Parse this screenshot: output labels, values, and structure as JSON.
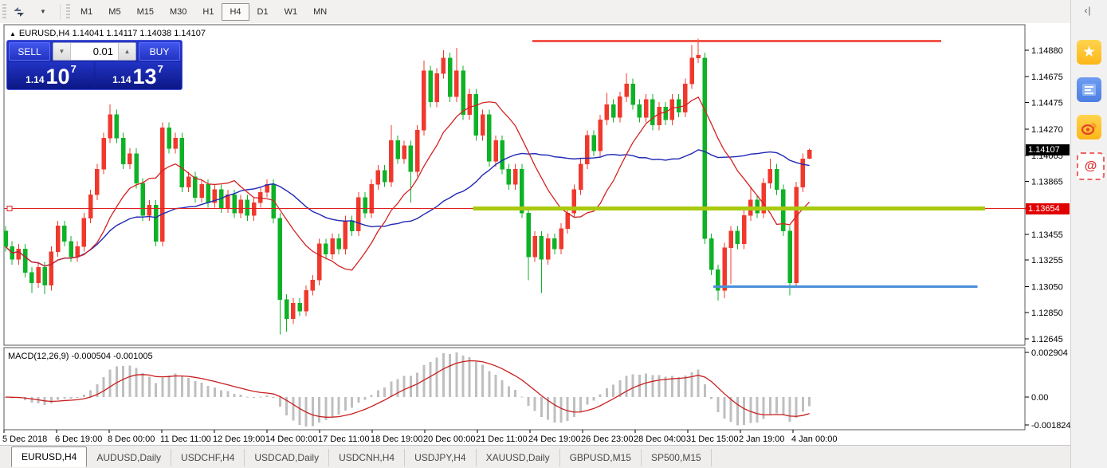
{
  "toolbar": {
    "timeframes": [
      "M1",
      "M5",
      "M15",
      "M30",
      "H1",
      "H4",
      "D1",
      "W1",
      "MN"
    ],
    "active_timeframe": "H4",
    "arrange_icon": "tile-windows-icon"
  },
  "sidebar": {
    "collapse_label": "‹|",
    "icons": [
      "favorites-star-icon",
      "news-feed-icon",
      "weibo-icon",
      "mail-at-icon"
    ],
    "star_glyph": "★",
    "at_glyph": "@"
  },
  "chart": {
    "expand_glyph": "▲",
    "symbol_title": "EURUSD,H4",
    "ohlc_text": "1.14041 1.14117 1.14038 1.14107",
    "current_price_badge": "1.14107",
    "line_price_badge": "1.13654"
  },
  "trade_panel": {
    "sell_label": "SELL",
    "buy_label": "BUY",
    "volume": "0.01",
    "step_down_glyph": "▼",
    "step_up_glyph": "▲",
    "sell_price": {
      "prefix": "1.14",
      "big": "10",
      "sup": "7"
    },
    "buy_price": {
      "prefix": "1.14",
      "big": "13",
      "sup": "7"
    }
  },
  "macd_panel": {
    "label": "MACD(12,26,9)",
    "values": "-0.000504 -0.001005"
  },
  "tabs": {
    "items": [
      "EURUSD,H4",
      "AUDUSD,Daily",
      "USDCHF,H4",
      "USDCAD,Daily",
      "USDCNH,H4",
      "USDJPY,H4",
      "XAUUSD,Daily",
      "GBPUSD,M15",
      "SP500,M15"
    ],
    "active": "EURUSD,H4"
  },
  "chart_data": {
    "type": "candlestick",
    "symbol": "EURUSD",
    "timeframe": "H4",
    "last_ohlc": {
      "open": "1.14041",
      "high": "1.14117",
      "low": "1.14038",
      "close": "1.14107"
    },
    "price_ticks": [
      "1.14880",
      "1.14675",
      "1.14475",
      "1.14270",
      "1.14065",
      "1.13865",
      "1.13455",
      "1.13255",
      "1.13050",
      "1.12850",
      "1.12645"
    ],
    "time_ticks": [
      "5 Dec 2018",
      "6 Dec 19:00",
      "8 Dec 00:00",
      "11 Dec 11:00",
      "12 Dec 19:00",
      "14 Dec 00:00",
      "17 Dec 11:00",
      "18 Dec 19:00",
      "20 Dec 00:00",
      "21 Dec 11:00",
      "24 Dec 19:00",
      "26 Dec 23:00",
      "28 Dec 04:00",
      "31 Dec 15:00",
      "2 Jan 19:00",
      "4 Jan 00:00"
    ],
    "macd_ticks": [
      "0.002904",
      "0.00",
      "-0.001824"
    ],
    "macd_axis_values": [
      0.002904,
      0.0,
      -0.001824
    ],
    "indicator": {
      "name": "MACD",
      "params": [
        12,
        26,
        9
      ],
      "main": -0.000504,
      "signal_value": -0.001005
    },
    "overlays": {
      "resistance_line": {
        "price": 1.1495,
        "from_bar": 80.6,
        "to_bar": 143.2,
        "color": "#f2564a",
        "width": 3
      },
      "support_line": {
        "price": 1.1305,
        "from_bar": 108.3,
        "to_bar": 148.7,
        "color": "#4a90d9",
        "width": 3
      },
      "band_line": {
        "price": 1.13654,
        "from_bar": 71.5,
        "to_bar": 149.9,
        "color": "#a9c90e",
        "width": 5
      },
      "hline": {
        "price": 1.13654,
        "color": "#e02020",
        "width": 1
      }
    },
    "ma_fast_period": 12,
    "ma_slow_period": 30,
    "colors": {
      "up": "#f0382c",
      "down": "#0eb226",
      "ma_fast": "#d42222",
      "ma_slow": "#2028b4",
      "macd_hist": "#bfbfbf",
      "macd_signal": "#c81e1e",
      "axis_text": "#000000",
      "frame": "#5a5a5a"
    },
    "candles": [
      [
        1.1348,
        1.1352,
        1.1332,
        1.1336
      ],
      [
        1.1336,
        1.134,
        1.1322,
        1.1326
      ],
      [
        1.1326,
        1.1338,
        1.1322,
        1.1334
      ],
      [
        1.1334,
        1.1338,
        1.1312,
        1.1316
      ],
      [
        1.1316,
        1.132,
        1.13,
        1.1308
      ],
      [
        1.1308,
        1.1324,
        1.1304,
        1.132
      ],
      [
        1.132,
        1.1324,
        1.1299,
        1.1306
      ],
      [
        1.1306,
        1.1336,
        1.1302,
        1.1332
      ],
      [
        1.1332,
        1.1356,
        1.1328,
        1.1352
      ],
      [
        1.1352,
        1.1356,
        1.1336,
        1.134
      ],
      [
        1.134,
        1.1344,
        1.1324,
        1.1328
      ],
      [
        1.1328,
        1.134,
        1.1324,
        1.1336
      ],
      [
        1.1336,
        1.1362,
        1.1332,
        1.1358
      ],
      [
        1.1358,
        1.138,
        1.1354,
        1.1376
      ],
      [
        1.1376,
        1.14,
        1.1372,
        1.1396
      ],
      [
        1.1396,
        1.1424,
        1.1392,
        1.142
      ],
      [
        1.142,
        1.1446,
        1.1416,
        1.1438
      ],
      [
        1.1438,
        1.1442,
        1.1416,
        1.142
      ],
      [
        1.142,
        1.1424,
        1.1396,
        1.14
      ],
      [
        1.14,
        1.1412,
        1.1396,
        1.1408
      ],
      [
        1.1408,
        1.1412,
        1.1381,
        1.1385
      ],
      [
        1.1385,
        1.1389,
        1.1356,
        1.136
      ],
      [
        1.136,
        1.1372,
        1.1356,
        1.1368
      ],
      [
        1.1368,
        1.1372,
        1.1336,
        1.134
      ],
      [
        1.134,
        1.1432,
        1.1336,
        1.1428
      ],
      [
        1.1428,
        1.1432,
        1.1408,
        1.1412
      ],
      [
        1.1412,
        1.1424,
        1.1408,
        1.142
      ],
      [
        1.142,
        1.1424,
        1.1378,
        1.1382
      ],
      [
        1.1382,
        1.1394,
        1.1378,
        1.139
      ],
      [
        1.139,
        1.1394,
        1.137,
        1.1374
      ],
      [
        1.1374,
        1.1388,
        1.137,
        1.1384
      ],
      [
        1.1384,
        1.1388,
        1.1366,
        1.137
      ],
      [
        1.137,
        1.1384,
        1.1366,
        1.138
      ],
      [
        1.138,
        1.1384,
        1.1362,
        1.1366
      ],
      [
        1.1366,
        1.138,
        1.1362,
        1.1376
      ],
      [
        1.1376,
        1.138,
        1.1358,
        1.1362
      ],
      [
        1.1362,
        1.1376,
        1.1358,
        1.1372
      ],
      [
        1.1372,
        1.1376,
        1.1356,
        1.136
      ],
      [
        1.136,
        1.1374,
        1.1356,
        1.137
      ],
      [
        1.137,
        1.1382,
        1.1366,
        1.1378
      ],
      [
        1.1378,
        1.1388,
        1.1374,
        1.1384
      ],
      [
        1.1384,
        1.1388,
        1.1354,
        1.1358
      ],
      [
        1.1358,
        1.1362,
        1.1268,
        1.1295
      ],
      [
        1.1295,
        1.1299,
        1.127,
        1.128
      ],
      [
        1.128,
        1.1296,
        1.1276,
        1.1292
      ],
      [
        1.1292,
        1.1296,
        1.1282,
        1.1286
      ],
      [
        1.1286,
        1.1306,
        1.1282,
        1.1302
      ],
      [
        1.1302,
        1.1314,
        1.1298,
        1.131
      ],
      [
        1.131,
        1.1342,
        1.1306,
        1.1338
      ],
      [
        1.1338,
        1.1342,
        1.1326,
        1.133
      ],
      [
        1.133,
        1.1346,
        1.1326,
        1.1342
      ],
      [
        1.1342,
        1.1346,
        1.133,
        1.1334
      ],
      [
        1.1334,
        1.136,
        1.133,
        1.1356
      ],
      [
        1.1356,
        1.136,
        1.1344,
        1.1348
      ],
      [
        1.1348,
        1.1378,
        1.1344,
        1.1374
      ],
      [
        1.1374,
        1.1378,
        1.1358,
        1.1362
      ],
      [
        1.1362,
        1.1388,
        1.1358,
        1.1384
      ],
      [
        1.1384,
        1.1399,
        1.138,
        1.1395
      ],
      [
        1.1395,
        1.1399,
        1.1382,
        1.1386
      ],
      [
        1.1386,
        1.143,
        1.1382,
        1.1418
      ],
      [
        1.1418,
        1.1422,
        1.14,
        1.1404
      ],
      [
        1.1404,
        1.1418,
        1.14,
        1.1414
      ],
      [
        1.1414,
        1.1418,
        1.137,
        1.1394
      ],
      [
        1.1394,
        1.143,
        1.139,
        1.1426
      ],
      [
        1.1426,
        1.148,
        1.1422,
        1.1472
      ],
      [
        1.1472,
        1.1476,
        1.1444,
        1.1448
      ],
      [
        1.1448,
        1.1474,
        1.1444,
        1.147
      ],
      [
        1.147,
        1.1488,
        1.1466,
        1.1482
      ],
      [
        1.1482,
        1.1486,
        1.1448,
        1.1452
      ],
      [
        1.1452,
        1.149,
        1.1448,
        1.1472
      ],
      [
        1.1472,
        1.1476,
        1.1434,
        1.1438
      ],
      [
        1.1438,
        1.1458,
        1.1434,
        1.1454
      ],
      [
        1.1454,
        1.1458,
        1.1418,
        1.1422
      ],
      [
        1.1422,
        1.1442,
        1.1418,
        1.1438
      ],
      [
        1.1438,
        1.1442,
        1.1398,
        1.1402
      ],
      [
        1.1402,
        1.1422,
        1.1398,
        1.1418
      ],
      [
        1.1418,
        1.1422,
        1.1392,
        1.1396
      ],
      [
        1.1396,
        1.14,
        1.138,
        1.1384
      ],
      [
        1.1384,
        1.14,
        1.138,
        1.1396
      ],
      [
        1.1396,
        1.14,
        1.1358,
        1.1362
      ],
      [
        1.1362,
        1.1366,
        1.131,
        1.1328
      ],
      [
        1.1328,
        1.1348,
        1.1324,
        1.1344
      ],
      [
        1.1344,
        1.1348,
        1.13,
        1.1326
      ],
      [
        1.1326,
        1.1346,
        1.1322,
        1.1342
      ],
      [
        1.1342,
        1.1346,
        1.133,
        1.1334
      ],
      [
        1.1334,
        1.1354,
        1.133,
        1.135
      ],
      [
        1.135,
        1.1366,
        1.1346,
        1.1362
      ],
      [
        1.1362,
        1.1384,
        1.1358,
        1.138
      ],
      [
        1.138,
        1.1404,
        1.1376,
        1.14
      ],
      [
        1.14,
        1.1426,
        1.1396,
        1.1422
      ],
      [
        1.1422,
        1.1426,
        1.1406,
        1.141
      ],
      [
        1.141,
        1.1438,
        1.1406,
        1.1434
      ],
      [
        1.1434,
        1.1455,
        1.143,
        1.1446
      ],
      [
        1.1446,
        1.145,
        1.1432,
        1.1436
      ],
      [
        1.1436,
        1.1456,
        1.1432,
        1.1452
      ],
      [
        1.1452,
        1.147,
        1.1448,
        1.1462
      ],
      [
        1.1462,
        1.1466,
        1.1442,
        1.1446
      ],
      [
        1.1446,
        1.145,
        1.1432,
        1.1436
      ],
      [
        1.1436,
        1.1454,
        1.1432,
        1.145
      ],
      [
        1.145,
        1.1454,
        1.1426,
        1.143
      ],
      [
        1.143,
        1.1448,
        1.1426,
        1.1444
      ],
      [
        1.1444,
        1.1448,
        1.143,
        1.1434
      ],
      [
        1.1434,
        1.1454,
        1.143,
        1.145
      ],
      [
        1.145,
        1.1454,
        1.1436,
        1.144
      ],
      [
        1.144,
        1.1466,
        1.1436,
        1.1462
      ],
      [
        1.1462,
        1.1492,
        1.1458,
        1.1482
      ],
      [
        1.1482,
        1.1497,
        1.1478,
        1.1484
      ],
      [
        1.1482,
        1.1486,
        1.1338,
        1.1342
      ],
      [
        1.1342,
        1.1346,
        1.1314,
        1.1318
      ],
      [
        1.1318,
        1.1322,
        1.1294,
        1.1302
      ],
      [
        1.1302,
        1.1339,
        1.1296,
        1.1335
      ],
      [
        1.1335,
        1.1352,
        1.1307,
        1.1348
      ],
      [
        1.1348,
        1.1352,
        1.1334,
        1.1338
      ],
      [
        1.1338,
        1.1364,
        1.1334,
        1.136
      ],
      [
        1.136,
        1.1382,
        1.1356,
        1.1372
      ],
      [
        1.1372,
        1.1376,
        1.1358,
        1.1362
      ],
      [
        1.1362,
        1.1389,
        1.1358,
        1.1385
      ],
      [
        1.1385,
        1.1404,
        1.1381,
        1.1396
      ],
      [
        1.1396,
        1.14,
        1.1376,
        1.138
      ],
      [
        1.138,
        1.1384,
        1.1344,
        1.1348
      ],
      [
        1.1348,
        1.1352,
        1.1298,
        1.1308
      ],
      [
        1.1308,
        1.1386,
        1.1304,
        1.1382
      ],
      [
        1.1382,
        1.1408,
        1.1378,
        1.1404
      ],
      [
        1.14041,
        1.14117,
        1.14038,
        1.14107
      ]
    ]
  }
}
